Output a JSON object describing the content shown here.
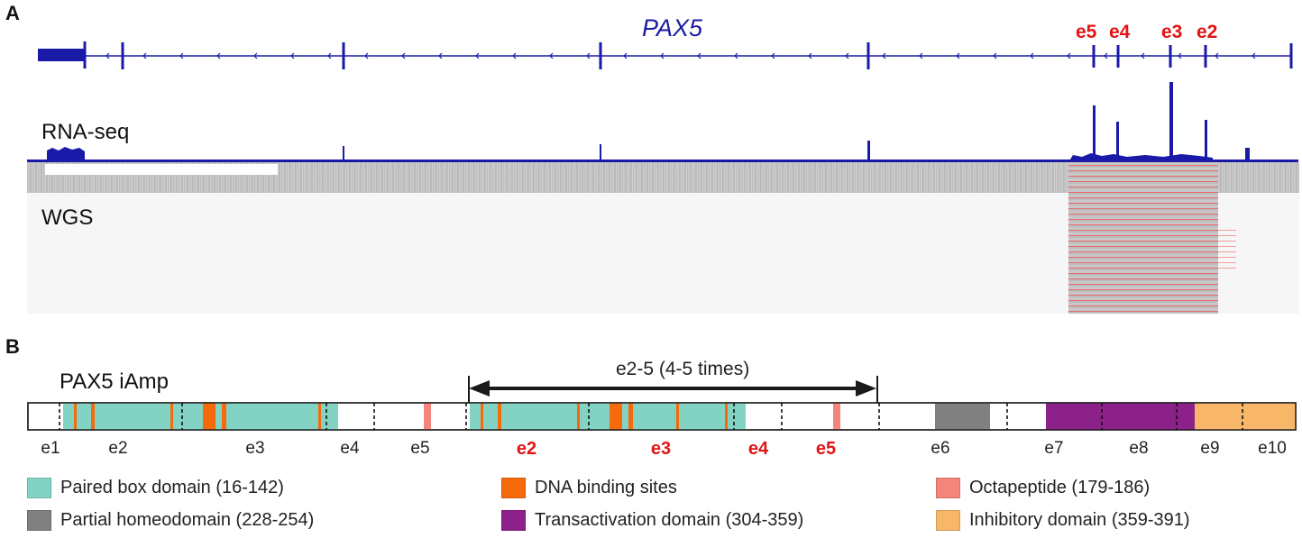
{
  "panel_a": {
    "label": "A",
    "gene": "PAX5",
    "exon_tags": [
      {
        "text": "e5"
      },
      {
        "text": "e4"
      },
      {
        "text": "e3"
      },
      {
        "text": "e2"
      }
    ],
    "tracks": {
      "rna": "RNA-seq",
      "wgs": "WGS"
    }
  },
  "panel_b": {
    "label": "B",
    "title": "PAX5 iAmp",
    "amplification_label": "e2-5 (4-5 times)",
    "exon_positions": [
      {
        "text": "e1",
        "highlight": false
      },
      {
        "text": "e2",
        "highlight": false
      },
      {
        "text": "e3",
        "highlight": false
      },
      {
        "text": "e4",
        "highlight": false
      },
      {
        "text": "e5",
        "highlight": false
      },
      {
        "text": "e2",
        "highlight": true
      },
      {
        "text": "e3",
        "highlight": true
      },
      {
        "text": "e4",
        "highlight": true
      },
      {
        "text": "e5",
        "highlight": true
      },
      {
        "text": "e6",
        "highlight": false
      },
      {
        "text": "e7",
        "highlight": false
      },
      {
        "text": "e8",
        "highlight": false
      },
      {
        "text": "e9",
        "highlight": false
      },
      {
        "text": "e10",
        "highlight": false
      }
    ],
    "legend": [
      {
        "label": "Paired box domain (16-142)",
        "color": "#83d3c5"
      },
      {
        "label": "DNA binding sites",
        "color": "#f46a0c"
      },
      {
        "label": "Octapeptide (179-186)",
        "color": "#f4857a"
      },
      {
        "label": "Partial homeodomain (228-254)",
        "color": "#808080"
      },
      {
        "label": "Transactivation domain (304-359)",
        "color": "#8c2189"
      },
      {
        "label": "Inhibitory domain (359-391)",
        "color": "#f8b768"
      }
    ]
  }
}
